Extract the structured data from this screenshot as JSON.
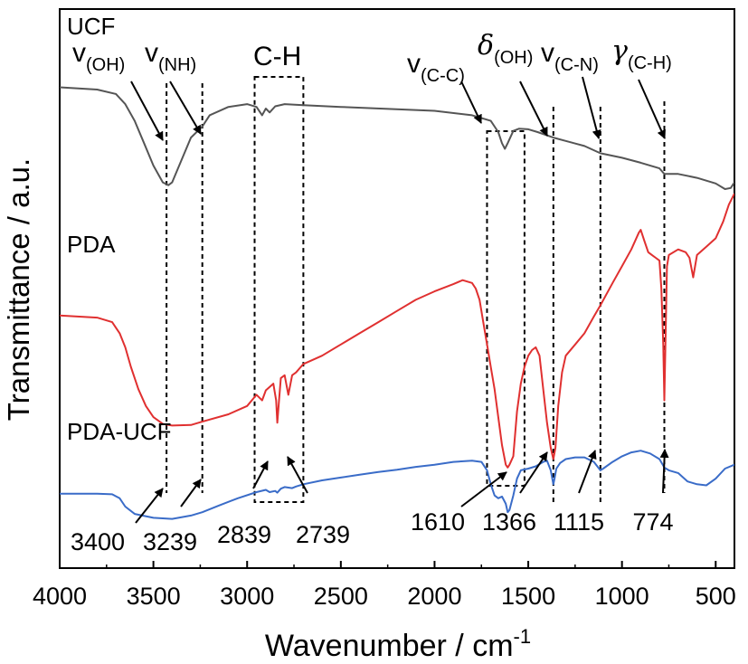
{
  "chart_data": {
    "type": "line",
    "xlabel": "Wavenumber / cm",
    "xlabel_sup": "-1",
    "ylabel": "Transmittance / a.u.",
    "xlim": [
      4000,
      400
    ],
    "x_reversed": true,
    "x_ticks": [
      4000,
      3500,
      3000,
      2500,
      2000,
      1500,
      1000,
      500
    ],
    "y_units": "arbitrary (offset traces)",
    "series": [
      {
        "name": "UCF",
        "color": "#555555",
        "points": [
          [
            4000,
            0.86
          ],
          [
            3800,
            0.856
          ],
          [
            3700,
            0.848
          ],
          [
            3650,
            0.83
          ],
          [
            3600,
            0.8
          ],
          [
            3550,
            0.76
          ],
          [
            3500,
            0.72
          ],
          [
            3450,
            0.69
          ],
          [
            3420,
            0.685
          ],
          [
            3400,
            0.69
          ],
          [
            3350,
            0.73
          ],
          [
            3300,
            0.77
          ],
          [
            3239,
            0.79
          ],
          [
            3200,
            0.81
          ],
          [
            3100,
            0.825
          ],
          [
            3000,
            0.83
          ],
          [
            2950,
            0.825
          ],
          [
            2920,
            0.81
          ],
          [
            2900,
            0.822
          ],
          [
            2880,
            0.815
          ],
          [
            2850,
            0.826
          ],
          [
            2800,
            0.83
          ],
          [
            2700,
            0.828
          ],
          [
            2500,
            0.825
          ],
          [
            2000,
            0.818
          ],
          [
            1800,
            0.81
          ],
          [
            1700,
            0.8
          ],
          [
            1660,
            0.78
          ],
          [
            1640,
            0.76
          ],
          [
            1625,
            0.75
          ],
          [
            1610,
            0.76
          ],
          [
            1580,
            0.782
          ],
          [
            1550,
            0.786
          ],
          [
            1500,
            0.785
          ],
          [
            1450,
            0.78
          ],
          [
            1366,
            0.77
          ],
          [
            1300,
            0.764
          ],
          [
            1200,
            0.755
          ],
          [
            1115,
            0.742
          ],
          [
            1000,
            0.734
          ],
          [
            900,
            0.725
          ],
          [
            800,
            0.715
          ],
          [
            774,
            0.705
          ],
          [
            700,
            0.705
          ],
          [
            600,
            0.698
          ],
          [
            500,
            0.688
          ],
          [
            450,
            0.678
          ],
          [
            420,
            0.68
          ],
          [
            400,
            0.69
          ]
        ]
      },
      {
        "name": "PDA",
        "color": "#e03030",
        "points": [
          [
            4000,
            0.452
          ],
          [
            3800,
            0.448
          ],
          [
            3720,
            0.44
          ],
          [
            3680,
            0.42
          ],
          [
            3650,
            0.395
          ],
          [
            3620,
            0.36
          ],
          [
            3580,
            0.32
          ],
          [
            3540,
            0.29
          ],
          [
            3500,
            0.27
          ],
          [
            3450,
            0.258
          ],
          [
            3400,
            0.255
          ],
          [
            3300,
            0.256
          ],
          [
            3239,
            0.262
          ],
          [
            3100,
            0.275
          ],
          [
            3000,
            0.29
          ],
          [
            2950,
            0.31
          ],
          [
            2920,
            0.3
          ],
          [
            2900,
            0.318
          ],
          [
            2860,
            0.33
          ],
          [
            2845,
            0.3
          ],
          [
            2839,
            0.26
          ],
          [
            2830,
            0.3
          ],
          [
            2820,
            0.34
          ],
          [
            2800,
            0.345
          ],
          [
            2780,
            0.31
          ],
          [
            2760,
            0.345
          ],
          [
            2739,
            0.35
          ],
          [
            2700,
            0.365
          ],
          [
            2600,
            0.38
          ],
          [
            2500,
            0.4
          ],
          [
            2400,
            0.42
          ],
          [
            2300,
            0.44
          ],
          [
            2200,
            0.46
          ],
          [
            2100,
            0.48
          ],
          [
            2000,
            0.495
          ],
          [
            1900,
            0.508
          ],
          [
            1850,
            0.515
          ],
          [
            1800,
            0.51
          ],
          [
            1780,
            0.5
          ],
          [
            1760,
            0.48
          ],
          [
            1740,
            0.44
          ],
          [
            1720,
            0.4
          ],
          [
            1700,
            0.36
          ],
          [
            1680,
            0.32
          ],
          [
            1660,
            0.27
          ],
          [
            1640,
            0.22
          ],
          [
            1620,
            0.185
          ],
          [
            1610,
            0.18
          ],
          [
            1600,
            0.185
          ],
          [
            1580,
            0.2
          ],
          [
            1560,
            0.28
          ],
          [
            1540,
            0.33
          ],
          [
            1520,
            0.36
          ],
          [
            1500,
            0.38
          ],
          [
            1480,
            0.39
          ],
          [
            1460,
            0.395
          ],
          [
            1440,
            0.38
          ],
          [
            1420,
            0.32
          ],
          [
            1400,
            0.26
          ],
          [
            1380,
            0.215
          ],
          [
            1366,
            0.195
          ],
          [
            1355,
            0.215
          ],
          [
            1340,
            0.29
          ],
          [
            1320,
            0.35
          ],
          [
            1300,
            0.38
          ],
          [
            1250,
            0.4
          ],
          [
            1200,
            0.42
          ],
          [
            1150,
            0.45
          ],
          [
            1115,
            0.47
          ],
          [
            1050,
            0.51
          ],
          [
            1000,
            0.54
          ],
          [
            950,
            0.57
          ],
          [
            910,
            0.6
          ],
          [
            900,
            0.605
          ],
          [
            880,
            0.585
          ],
          [
            860,
            0.565
          ],
          [
            840,
            0.56
          ],
          [
            820,
            0.555
          ],
          [
            800,
            0.55
          ],
          [
            790,
            0.5
          ],
          [
            780,
            0.4
          ],
          [
            774,
            0.3
          ],
          [
            768,
            0.4
          ],
          [
            760,
            0.54
          ],
          [
            750,
            0.56
          ],
          [
            700,
            0.57
          ],
          [
            660,
            0.565
          ],
          [
            640,
            0.555
          ],
          [
            620,
            0.52
          ],
          [
            600,
            0.56
          ],
          [
            550,
            0.575
          ],
          [
            500,
            0.59
          ],
          [
            460,
            0.62
          ],
          [
            430,
            0.65
          ],
          [
            400,
            0.67
          ]
        ]
      },
      {
        "name": "PDA-UCF",
        "color": "#3a6cc8",
        "points": [
          [
            4000,
            0.133
          ],
          [
            3800,
            0.133
          ],
          [
            3720,
            0.132
          ],
          [
            3680,
            0.125
          ],
          [
            3650,
            0.11
          ],
          [
            3600,
            0.097
          ],
          [
            3500,
            0.09
          ],
          [
            3400,
            0.088
          ],
          [
            3300,
            0.094
          ],
          [
            3239,
            0.1
          ],
          [
            3150,
            0.112
          ],
          [
            3050,
            0.125
          ],
          [
            2950,
            0.136
          ],
          [
            2900,
            0.14
          ],
          [
            2880,
            0.136
          ],
          [
            2850,
            0.138
          ],
          [
            2839,
            0.135
          ],
          [
            2820,
            0.142
          ],
          [
            2800,
            0.145
          ],
          [
            2760,
            0.143
          ],
          [
            2739,
            0.146
          ],
          [
            2700,
            0.15
          ],
          [
            2600,
            0.157
          ],
          [
            2500,
            0.162
          ],
          [
            2400,
            0.167
          ],
          [
            2300,
            0.172
          ],
          [
            2200,
            0.176
          ],
          [
            2100,
            0.181
          ],
          [
            2000,
            0.185
          ],
          [
            1900,
            0.19
          ],
          [
            1800,
            0.192
          ],
          [
            1750,
            0.19
          ],
          [
            1720,
            0.175
          ],
          [
            1700,
            0.15
          ],
          [
            1680,
            0.13
          ],
          [
            1660,
            0.125
          ],
          [
            1640,
            0.128
          ],
          [
            1620,
            0.115
          ],
          [
            1610,
            0.1
          ],
          [
            1600,
            0.104
          ],
          [
            1580,
            0.13
          ],
          [
            1560,
            0.16
          ],
          [
            1540,
            0.175
          ],
          [
            1500,
            0.178
          ],
          [
            1460,
            0.182
          ],
          [
            1420,
            0.19
          ],
          [
            1400,
            0.192
          ],
          [
            1380,
            0.175
          ],
          [
            1366,
            0.15
          ],
          [
            1360,
            0.16
          ],
          [
            1350,
            0.178
          ],
          [
            1330,
            0.188
          ],
          [
            1300,
            0.195
          ],
          [
            1250,
            0.198
          ],
          [
            1200,
            0.198
          ],
          [
            1150,
            0.19
          ],
          [
            1115,
            0.175
          ],
          [
            1100,
            0.178
          ],
          [
            1050,
            0.19
          ],
          [
            1000,
            0.2
          ],
          [
            950,
            0.207
          ],
          [
            900,
            0.21
          ],
          [
            850,
            0.205
          ],
          [
            800,
            0.195
          ],
          [
            774,
            0.18
          ],
          [
            750,
            0.175
          ],
          [
            700,
            0.17
          ],
          [
            650,
            0.155
          ],
          [
            600,
            0.15
          ],
          [
            550,
            0.148
          ],
          [
            500,
            0.16
          ],
          [
            450,
            0.178
          ],
          [
            400,
            0.185
          ]
        ]
      }
    ],
    "series_labels": [
      {
        "text": "UCF",
        "series": "UCF",
        "x": 3950,
        "y": 0.955
      },
      {
        "text": "PDA",
        "series": "PDA",
        "x": 3950,
        "y": 0.565
      },
      {
        "text": "PDA-UCF",
        "series": "PDA-UCF",
        "x": 3950,
        "y": 0.23
      }
    ],
    "peak_lines": [
      3400,
      3239,
      2839,
      2739,
      1610,
      1366,
      1115,
      774
    ],
    "peak_labels": [
      "3400",
      "3239",
      "2839",
      "2739",
      "1610",
      "1366",
      "1115",
      "774"
    ],
    "group_labels": [
      {
        "main": "v",
        "sub": "(OH)"
      },
      {
        "main": "v",
        "sub": "(NH)"
      },
      {
        "main": "C-H",
        "sub": ""
      },
      {
        "main": "v",
        "sub": "(C-C)"
      },
      {
        "main": "δ",
        "sub": "(OH)"
      },
      {
        "main": "v",
        "sub": "(C-N)"
      },
      {
        "main": "γ",
        "sub": "(C-H)"
      }
    ]
  }
}
